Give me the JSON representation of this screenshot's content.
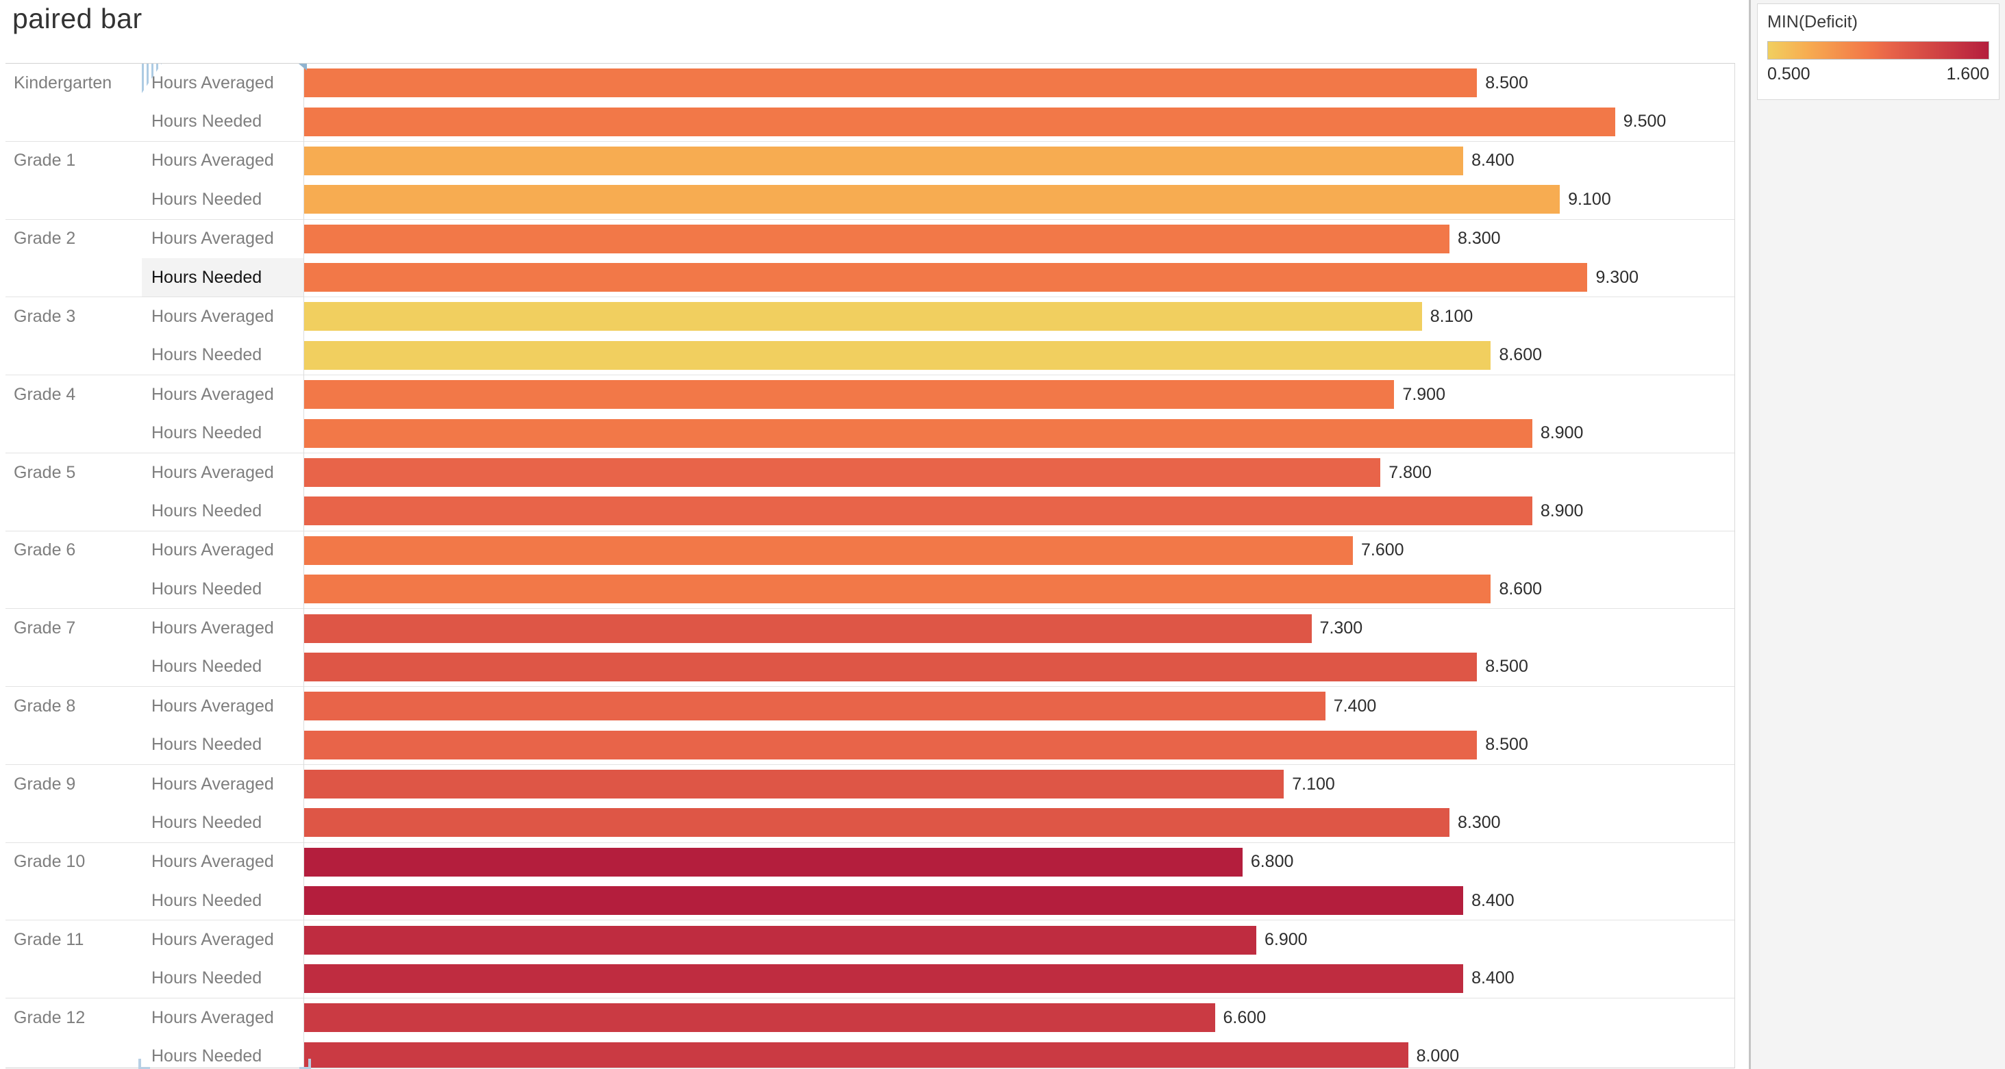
{
  "title": "paired bar",
  "legend": {
    "title": "MIN(Deficit)",
    "min_label": "0.500",
    "max_label": "1.600",
    "gradient_colors": [
      "#f1cf5f",
      "#f7ac51",
      "#f27848",
      "#e86449",
      "#de5646",
      "#ca3a43",
      "#bf2c40",
      "#b41e3d"
    ],
    "domain": [
      0.5,
      1.6
    ]
  },
  "chart_data": {
    "type": "bar",
    "orientation": "horizontal",
    "title": "paired bar",
    "measure_names": [
      "Hours Averaged",
      "Hours Needed"
    ],
    "x_axis": {
      "min": 0,
      "max_visible": 10.37,
      "labels_visible": false,
      "gridlines": false
    },
    "color_encoding": {
      "field": "MIN(Deficit)",
      "min": 0.5,
      "max": 1.6,
      "legend_position": "top-right"
    },
    "groups": [
      {
        "category": "Kindergarten",
        "values": [
          8.5,
          9.5
        ],
        "value_labels": [
          "8.500",
          "9.500"
        ],
        "deficit": 1.0,
        "color": "#f27848"
      },
      {
        "category": "Grade 1",
        "values": [
          8.4,
          9.1
        ],
        "value_labels": [
          "8.400",
          "9.100"
        ],
        "deficit": 0.7,
        "color": "#f7ac51"
      },
      {
        "category": "Grade 2",
        "values": [
          8.3,
          9.3
        ],
        "value_labels": [
          "8.300",
          "9.300"
        ],
        "deficit": 1.0,
        "color": "#f27848"
      },
      {
        "category": "Grade 3",
        "values": [
          8.1,
          8.6
        ],
        "value_labels": [
          "8.100",
          "8.600"
        ],
        "deficit": 0.5,
        "color": "#f1cf5f"
      },
      {
        "category": "Grade 4",
        "values": [
          7.9,
          8.9
        ],
        "value_labels": [
          "7.900",
          "8.900"
        ],
        "deficit": 1.0,
        "color": "#f27848"
      },
      {
        "category": "Grade 5",
        "values": [
          7.8,
          8.9
        ],
        "value_labels": [
          "7.800",
          "8.900"
        ],
        "deficit": 1.1,
        "color": "#e86449"
      },
      {
        "category": "Grade 6",
        "values": [
          7.6,
          8.6
        ],
        "value_labels": [
          "7.600",
          "8.600"
        ],
        "deficit": 1.0,
        "color": "#f27848"
      },
      {
        "category": "Grade 7",
        "values": [
          7.3,
          8.5
        ],
        "value_labels": [
          "7.300",
          "8.500"
        ],
        "deficit": 1.2,
        "color": "#de5646"
      },
      {
        "category": "Grade 8",
        "values": [
          7.4,
          8.5
        ],
        "value_labels": [
          "7.400",
          "8.500"
        ],
        "deficit": 1.1,
        "color": "#e86449"
      },
      {
        "category": "Grade 9",
        "values": [
          7.1,
          8.3
        ],
        "value_labels": [
          "7.100",
          "8.300"
        ],
        "deficit": 1.2,
        "color": "#de5646"
      },
      {
        "category": "Grade 10",
        "values": [
          6.8,
          8.4
        ],
        "value_labels": [
          "6.800",
          "8.400"
        ],
        "deficit": 1.6,
        "color": "#b41e3d"
      },
      {
        "category": "Grade 11",
        "values": [
          6.9,
          8.4
        ],
        "value_labels": [
          "6.900",
          "8.400"
        ],
        "deficit": 1.5,
        "color": "#bf2c40"
      },
      {
        "category": "Grade 12",
        "values": [
          6.6,
          8.0
        ],
        "value_labels": [
          "6.600",
          "8.000"
        ],
        "deficit": 1.4,
        "color": "#ca3a43"
      }
    ]
  },
  "ui_state": {
    "highlighted_cell": {
      "category": "Grade 2",
      "measure": "Hours Needed"
    }
  }
}
